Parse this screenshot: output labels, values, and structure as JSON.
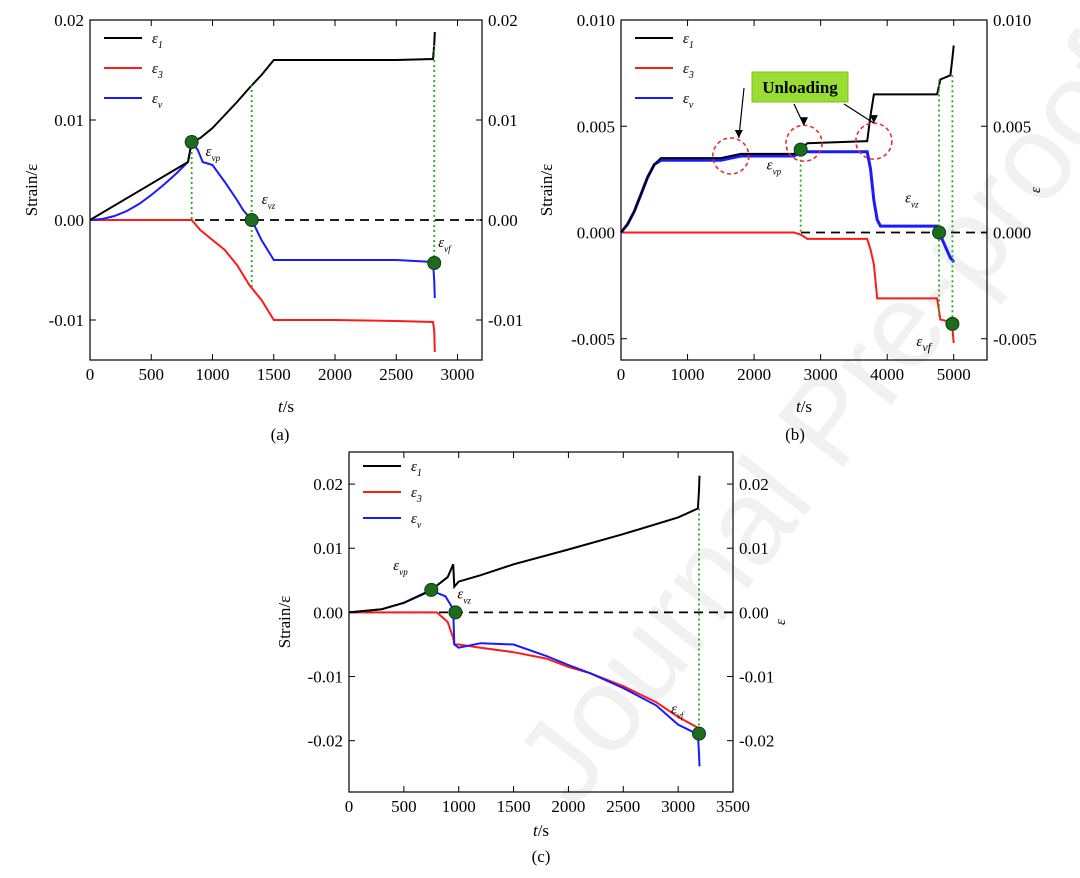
{
  "watermark": "Journal Pre-proof",
  "series_names": {
    "e1": {
      "sym": "ε",
      "sub": "1"
    },
    "e3": {
      "sym": "ε",
      "sub": "3"
    },
    "ev": {
      "sym": "ε",
      "sub": "v"
    }
  },
  "colors": {
    "e1": "#000000",
    "e3": "#ff1a1a",
    "ev": "#1a1aff",
    "marker": "#1e6b1e",
    "guide": "#22aa22",
    "unloading_box": "#99dd33",
    "circle": "#e03030"
  },
  "chart_data": [
    {
      "id": "a",
      "type": "line",
      "caption": "(a)",
      "xlabel": {
        "sym": "t",
        "unit": "/s"
      },
      "ylabel_left": "Strain/ε",
      "ylabel_right": "",
      "xlim": [
        0,
        3200
      ],
      "ylim": [
        -0.014,
        0.02
      ],
      "xticks": [
        0,
        500,
        1000,
        1500,
        2000,
        2500,
        3000
      ],
      "yticks": [
        -0.01,
        0.0,
        0.01,
        0.02
      ],
      "ytick_labels": [
        "-0.01",
        "0.00",
        "0.01",
        "0.02"
      ],
      "legend": "top-left",
      "series": [
        {
          "key": "e1",
          "x": [
            0,
            800,
            830,
            900,
            1000,
            1100,
            1200,
            1300,
            1400,
            1500,
            2000,
            2500,
            2800,
            2810,
            2815
          ],
          "y": [
            0,
            0.0058,
            0.0078,
            0.0082,
            0.0092,
            0.0105,
            0.0118,
            0.0132,
            0.0145,
            0.016,
            0.016,
            0.016,
            0.0161,
            0.0175,
            0.0188
          ]
        },
        {
          "key": "e3",
          "x": [
            0,
            830,
            900,
            1000,
            1100,
            1200,
            1300,
            1400,
            1500,
            2000,
            2500,
            2800,
            2810,
            2815
          ],
          "y": [
            0,
            0,
            -0.001,
            -0.002,
            -0.003,
            -0.0045,
            -0.0065,
            -0.008,
            -0.01,
            -0.01,
            -0.0101,
            -0.0102,
            -0.011,
            -0.0132
          ]
        },
        {
          "key": "ev",
          "x": [
            0,
            100,
            200,
            300,
            400,
            500,
            600,
            700,
            800,
            830,
            880,
            920,
            1000,
            1100,
            1200,
            1250,
            1320,
            1400,
            1500,
            2000,
            2500,
            2800,
            2810,
            2815
          ],
          "y": [
            0,
            0.0001,
            0.0004,
            0.0009,
            0.0016,
            0.0025,
            0.0035,
            0.0046,
            0.0058,
            0.0078,
            0.007,
            0.0058,
            0.0055,
            0.0038,
            0.002,
            0.001,
            0,
            -0.002,
            -0.004,
            -0.004,
            -0.004,
            -0.0042,
            -0.006,
            -0.0078
          ]
        }
      ],
      "zero_line": true,
      "points": [
        {
          "label": "vp",
          "x": 830,
          "y": 0.0078
        },
        {
          "label": "vz",
          "x": 1320,
          "y": 0.0
        },
        {
          "label": "vf",
          "x": 2810,
          "y": -0.0043
        }
      ],
      "guides": [
        {
          "x": 830,
          "y_top": 0.0078,
          "y_bottom": 0.0
        },
        {
          "x": 1320,
          "y_top": 0.0135,
          "y_bottom": -0.0068
        },
        {
          "x": 2810,
          "y_top": 0.0175,
          "y_bottom": -0.0043
        }
      ]
    },
    {
      "id": "b",
      "type": "line",
      "caption": "(b)",
      "xlabel": {
        "sym": "t",
        "unit": "/s"
      },
      "ylabel_left": "Strain/ε",
      "ylabel_right": "ε",
      "xlim": [
        0,
        5500
      ],
      "ylim": [
        -0.006,
        0.01
      ],
      "xticks": [
        0,
        1000,
        2000,
        3000,
        4000,
        5000
      ],
      "yticks": [
        -0.005,
        0.0,
        0.005,
        0.01
      ],
      "ytick_labels": [
        "-0.005",
        "0.000",
        "0.005",
        "0.010"
      ],
      "legend": "top-left",
      "series": [
        {
          "key": "e1",
          "x": [
            0,
            100,
            200,
            300,
            400,
            500,
            600,
            1500,
            1800,
            2600,
            2700,
            2800,
            3700,
            3750,
            3800,
            4000,
            4750,
            4800,
            4950,
            4980,
            5000
          ],
          "y": [
            0,
            0.0004,
            0.001,
            0.0018,
            0.0026,
            0.0032,
            0.0035,
            0.0035,
            0.0037,
            0.0037,
            0.0039,
            0.0042,
            0.0043,
            0.0055,
            0.0065,
            0.0065,
            0.0065,
            0.0072,
            0.0074,
            0.0082,
            0.0088
          ]
        },
        {
          "key": "e3",
          "x": [
            0,
            2600,
            2700,
            2800,
            3700,
            3750,
            3800,
            3850,
            4750,
            4800,
            4950,
            4980,
            5000
          ],
          "y": [
            0,
            0,
            -0.0001,
            -0.0003,
            -0.0003,
            -0.0008,
            -0.0015,
            -0.0031,
            -0.0031,
            -0.0041,
            -0.0042,
            -0.0045,
            -0.0052
          ]
        },
        {
          "key": "ev",
          "x": [
            0,
            100,
            200,
            300,
            400,
            500,
            600,
            1500,
            1800,
            2600,
            2700,
            3700,
            3750,
            3800,
            3850,
            3900,
            4750,
            4780,
            4950,
            4980,
            5000
          ],
          "y": [
            0,
            0.0004,
            0.001,
            0.0018,
            0.0026,
            0.0032,
            0.0034,
            0.0034,
            0.0036,
            0.0036,
            0.0038,
            0.0038,
            0.003,
            0.0015,
            0.0006,
            0.0003,
            0.0003,
            0,
            -0.0012,
            -0.0013,
            -0.0014
          ]
        }
      ],
      "zero_line": true,
      "points": [
        {
          "label": "vp",
          "x": 2700,
          "y": 0.0039
        },
        {
          "label": "vz",
          "x": 4780,
          "y": 0.0
        },
        {
          "label": "vf",
          "x": 4980,
          "y": -0.0043
        }
      ],
      "guides": [
        {
          "x": 2700,
          "y_top": 0.0039,
          "y_bottom": 0.0
        },
        {
          "x": 4780,
          "y_top": 0.0072,
          "y_bottom": -0.0041
        },
        {
          "x": 4980,
          "y_top": 0.0074,
          "y_bottom": -0.0043
        }
      ],
      "annotation": {
        "text": "Unloading",
        "circles_at": [
          [
            1650,
            0.0036
          ],
          [
            2750,
            0.0042
          ],
          [
            3800,
            0.0043
          ]
        ]
      }
    },
    {
      "id": "c",
      "type": "line",
      "caption": "(c)",
      "xlabel": {
        "sym": "t",
        "unit": "/s"
      },
      "ylabel_left": "Strain/ε",
      "ylabel_right": "ε",
      "xlim": [
        0,
        3500
      ],
      "ylim": [
        -0.028,
        0.025
      ],
      "xticks": [
        0,
        500,
        1000,
        1500,
        2000,
        2500,
        3000,
        3500
      ],
      "yticks": [
        -0.02,
        -0.01,
        0.0,
        0.01,
        0.02
      ],
      "ytick_labels": [
        "-0.02",
        "-0.01",
        "0.00",
        "0.01",
        "0.02"
      ],
      "legend": "top-left",
      "series": [
        {
          "key": "e1",
          "x": [
            0,
            300,
            500,
            750,
            900,
            950,
            960,
            1000,
            1200,
            1500,
            2000,
            2500,
            3000,
            3180,
            3190,
            3195
          ],
          "y": [
            0,
            0.0005,
            0.0015,
            0.0035,
            0.0055,
            0.0075,
            0.004,
            0.0048,
            0.0058,
            0.0075,
            0.0098,
            0.0122,
            0.0148,
            0.0162,
            0.019,
            0.0213
          ]
        },
        {
          "key": "e3",
          "x": [
            0,
            800,
            900,
            950,
            960,
            1000,
            1200,
            1500,
            1800,
            2000,
            2200,
            2500,
            2800,
            3000,
            3180,
            3190
          ],
          "y": [
            0,
            0,
            -0.0015,
            -0.004,
            -0.005,
            -0.005,
            -0.0055,
            -0.0062,
            -0.0072,
            -0.0085,
            -0.0095,
            -0.0115,
            -0.014,
            -0.0163,
            -0.018,
            -0.019
          ]
        },
        {
          "key": "ev",
          "x": [
            0,
            300,
            500,
            750,
            880,
            950,
            960,
            1000,
            1200,
            1500,
            1800,
            2000,
            2200,
            2500,
            2800,
            3000,
            3180,
            3190,
            3195
          ],
          "y": [
            0,
            0.0005,
            0.0015,
            0.0034,
            0.0025,
            0.0005,
            -0.005,
            -0.0055,
            -0.0048,
            -0.005,
            -0.0068,
            -0.0082,
            -0.0095,
            -0.0118,
            -0.0145,
            -0.0175,
            -0.019,
            -0.022,
            -0.024
          ]
        }
      ],
      "zero_line": true,
      "points": [
        {
          "label": "vp",
          "x": 750,
          "y": 0.0035
        },
        {
          "label": "vz",
          "x": 970,
          "y": 0.0
        },
        {
          "label": "vf",
          "x": 3190,
          "y": -0.0189
        }
      ],
      "guides": [
        {
          "x": 3190,
          "y_top": 0.0162,
          "y_bottom": -0.0189
        }
      ]
    }
  ]
}
